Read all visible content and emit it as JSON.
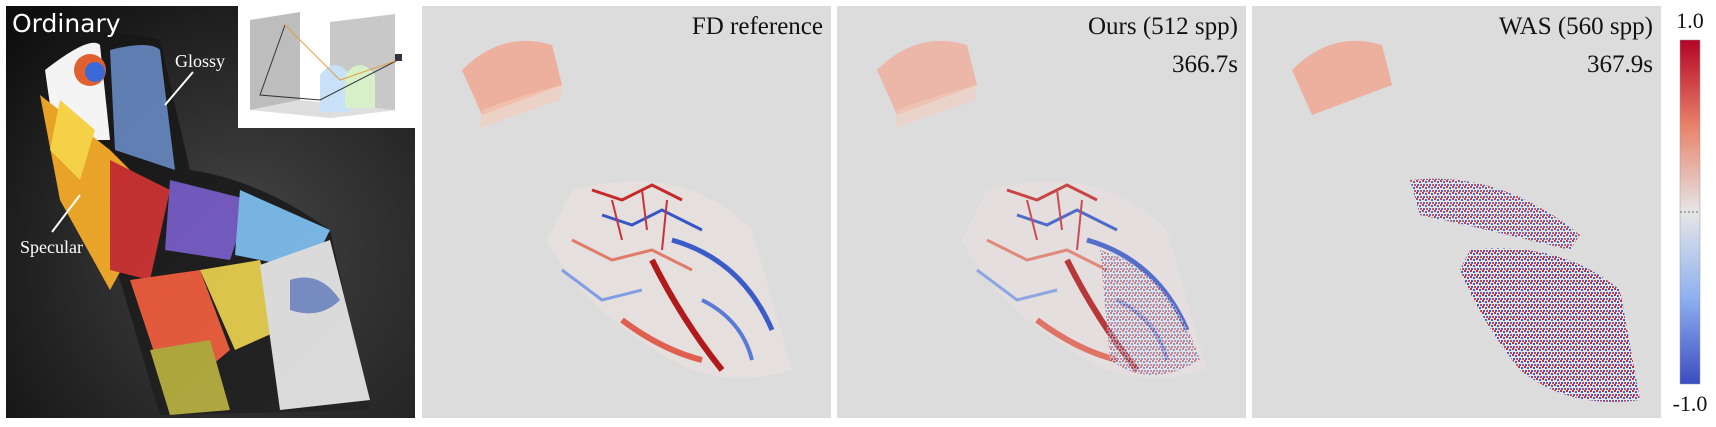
{
  "panels": [
    {
      "label": "Ordinary",
      "annotations": [
        "Glossy",
        "Specular"
      ]
    },
    {
      "label": "FD reference"
    },
    {
      "label": "Ours (512 spp)",
      "time": "366.7s"
    },
    {
      "label": "WAS (560 spp)",
      "time": "367.9s"
    }
  ],
  "colorbar": {
    "max_label": "1.0",
    "min_label": "-1.0"
  }
}
